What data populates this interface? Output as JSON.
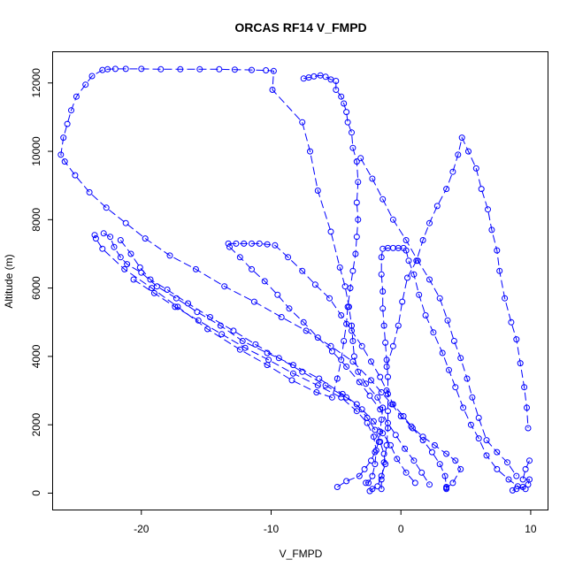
{
  "chart_data": {
    "type": "scatter",
    "title": "ORCAS RF14 V_FMPD",
    "xlabel": "V_FMPD",
    "ylabel": "Altitude (m)",
    "xlim": [
      -26.8,
      11.3
    ],
    "ylim": [
      -480,
      12900
    ],
    "xticks": [
      -20,
      -10,
      0,
      10
    ],
    "yticks": [
      0,
      2000,
      4000,
      6000,
      8000,
      10000,
      12000
    ],
    "grid": false,
    "legend": "none",
    "color": "#0000ff",
    "series": [
      {
        "points": [
          [
            -4.9,
            180
          ],
          [
            -4.2,
            350
          ],
          [
            -3.2,
            500
          ],
          [
            -2.8,
            700
          ],
          [
            -2.3,
            950
          ],
          [
            -2.0,
            1200
          ],
          [
            -1.7,
            1500
          ],
          [
            -1.6,
            1800
          ],
          [
            -1.5,
            2150
          ],
          [
            -1.4,
            2500
          ],
          [
            -1.8,
            2800
          ],
          [
            -2.7,
            3200
          ],
          [
            -3.3,
            3550
          ],
          [
            -3.6,
            4000
          ],
          [
            -3.7,
            4450
          ],
          [
            -3.8,
            4900
          ],
          [
            -4.0,
            5450
          ],
          [
            -4.3,
            6050
          ],
          [
            -4.7,
            6600
          ],
          [
            -5.4,
            7650
          ],
          [
            -6.4,
            8850
          ],
          [
            -7.0,
            10000
          ],
          [
            -7.6,
            10850
          ],
          [
            -9.9,
            11800
          ],
          [
            -9.8,
            12350
          ],
          [
            -10.4,
            12370
          ],
          [
            -11.5,
            12380
          ],
          [
            -12.8,
            12390
          ],
          [
            -14.0,
            12400
          ],
          [
            -15.5,
            12400
          ],
          [
            -17.0,
            12400
          ],
          [
            -18.5,
            12400
          ],
          [
            -20.0,
            12410
          ],
          [
            -21.2,
            12410
          ],
          [
            -22.0,
            12410
          ],
          [
            -22.6,
            12400
          ],
          [
            -23.0,
            12380
          ],
          [
            -23.8,
            12200
          ],
          [
            -24.3,
            11950
          ],
          [
            -25.0,
            11600
          ],
          [
            -25.4,
            11200
          ],
          [
            -25.7,
            10800
          ],
          [
            -26.0,
            10400
          ],
          [
            -26.2,
            9900
          ],
          [
            -25.9,
            9700
          ],
          [
            -25.1,
            9300
          ],
          [
            -24.0,
            8800
          ],
          [
            -22.7,
            8350
          ],
          [
            -21.2,
            7900
          ],
          [
            -19.7,
            7450
          ],
          [
            -17.8,
            6950
          ],
          [
            -15.8,
            6550
          ],
          [
            -13.6,
            6050
          ],
          [
            -11.3,
            5600
          ],
          [
            -9.2,
            5150
          ],
          [
            -7.3,
            4750
          ],
          [
            -5.4,
            4300
          ],
          [
            -3.7,
            3850
          ],
          [
            -2.3,
            3300
          ],
          [
            -1.5,
            2950
          ],
          [
            -0.7,
            2600
          ],
          [
            0.0,
            2250
          ],
          [
            0.8,
            1950
          ],
          [
            1.7,
            1650
          ],
          [
            2.6,
            1400
          ],
          [
            3.5,
            1150
          ],
          [
            4.2,
            950
          ],
          [
            4.6,
            700
          ],
          [
            4.0,
            300
          ],
          [
            3.5,
            150
          ]
        ]
      },
      {
        "points": [
          [
            -7.5,
            12130
          ],
          [
            -7.1,
            12160
          ],
          [
            -6.7,
            12190
          ],
          [
            -6.2,
            12220
          ],
          [
            -5.8,
            12180
          ],
          [
            -5.4,
            12100
          ],
          [
            -5.0,
            12060
          ],
          [
            -5.0,
            11800
          ],
          [
            -4.6,
            11600
          ],
          [
            -4.4,
            11400
          ],
          [
            -4.2,
            11150
          ],
          [
            -4.1,
            10850
          ],
          [
            -3.8,
            10550
          ],
          [
            -3.7,
            10100
          ],
          [
            -3.4,
            9700
          ],
          [
            -3.3,
            9100
          ],
          [
            -3.4,
            8500
          ],
          [
            -3.3,
            8000
          ],
          [
            -3.4,
            7500
          ],
          [
            -3.5,
            7000
          ],
          [
            -3.7,
            6500
          ],
          [
            -3.9,
            6000
          ],
          [
            -4.1,
            5450
          ],
          [
            -4.2,
            4950
          ],
          [
            -4.4,
            4450
          ],
          [
            -4.6,
            3900
          ],
          [
            -4.9,
            3350
          ],
          [
            -5.3,
            2800
          ],
          [
            -6.5,
            2950
          ],
          [
            -8.4,
            3300
          ],
          [
            -10.3,
            3750
          ],
          [
            -12.4,
            4200
          ],
          [
            -14.9,
            4800
          ],
          [
            -17.2,
            5450
          ],
          [
            -19.2,
            6000
          ],
          [
            -21.3,
            6550
          ],
          [
            -23.0,
            7150
          ],
          [
            -23.5,
            7450
          ],
          [
            -23.6,
            7550
          ]
        ]
      },
      {
        "points": [
          [
            -22.9,
            7600
          ],
          [
            -22.4,
            7500
          ],
          [
            -22.1,
            7200
          ],
          [
            -21.6,
            6900
          ],
          [
            -21.1,
            6700
          ],
          [
            -20.0,
            6450
          ],
          [
            -18.8,
            6050
          ],
          [
            -17.3,
            5700
          ],
          [
            -15.7,
            5300
          ],
          [
            -13.9,
            4900
          ],
          [
            -12.2,
            4450
          ],
          [
            -10.3,
            4100
          ],
          [
            -8.3,
            3750
          ],
          [
            -6.3,
            3350
          ],
          [
            -4.5,
            2900
          ],
          [
            -3.4,
            2600
          ],
          [
            -2.6,
            2200
          ],
          [
            -2.0,
            1850
          ],
          [
            -1.6,
            1500
          ],
          [
            -1.3,
            1150
          ],
          [
            -1.2,
            850
          ],
          [
            -1.5,
            500
          ],
          [
            -1.8,
            200
          ],
          [
            -2.2,
            120
          ],
          [
            -2.4,
            60
          ]
        ]
      },
      {
        "points": [
          [
            -21.6,
            7400
          ],
          [
            -20.8,
            7000
          ],
          [
            -20.1,
            6600
          ],
          [
            -19.3,
            6250
          ],
          [
            -18.0,
            5950
          ],
          [
            -16.4,
            5550
          ],
          [
            -14.7,
            5150
          ],
          [
            -12.9,
            4750
          ],
          [
            -11.2,
            4350
          ],
          [
            -9.4,
            3950
          ],
          [
            -7.6,
            3550
          ],
          [
            -5.8,
            3150
          ],
          [
            -4.2,
            2800
          ],
          [
            -3.0,
            2450
          ],
          [
            -2.1,
            2100
          ],
          [
            -1.4,
            1750
          ],
          [
            -0.8,
            1400
          ],
          [
            -0.3,
            1000
          ],
          [
            0.4,
            600
          ],
          [
            1.1,
            300
          ]
        ]
      },
      {
        "points": [
          [
            -20.6,
            6250
          ],
          [
            -19.0,
            5850
          ],
          [
            -17.4,
            5450
          ],
          [
            -15.6,
            5050
          ],
          [
            -13.8,
            4650
          ],
          [
            -12.0,
            4250
          ],
          [
            -10.2,
            3900
          ],
          [
            -8.3,
            3500
          ],
          [
            -6.4,
            3150
          ],
          [
            -4.6,
            2800
          ],
          [
            -3.4,
            2400
          ],
          [
            -2.6,
            2050
          ],
          [
            -2.1,
            1650
          ],
          [
            -1.9,
            1250
          ],
          [
            -2.0,
            850
          ],
          [
            -2.2,
            500
          ],
          [
            -2.5,
            300
          ],
          [
            -2.7,
            300
          ]
        ]
      },
      {
        "points": [
          [
            -13.3,
            7300
          ],
          [
            -12.7,
            7300
          ],
          [
            -12.1,
            7300
          ],
          [
            -11.5,
            7300
          ],
          [
            -10.9,
            7300
          ],
          [
            -10.3,
            7280
          ],
          [
            -9.7,
            7250
          ],
          [
            -8.7,
            6900
          ],
          [
            -7.6,
            6500
          ],
          [
            -6.6,
            6100
          ],
          [
            -5.5,
            5700
          ],
          [
            -4.6,
            5200
          ],
          [
            -3.8,
            4750
          ],
          [
            -3.0,
            4300
          ],
          [
            -2.3,
            3850
          ],
          [
            -1.6,
            3400
          ],
          [
            -1.1,
            3000
          ],
          [
            -0.6,
            2600
          ],
          [
            0.2,
            2250
          ],
          [
            0.9,
            1900
          ],
          [
            1.7,
            1550
          ],
          [
            2.4,
            1200
          ],
          [
            3.0,
            850
          ],
          [
            3.4,
            500
          ],
          [
            3.5,
            180
          ],
          [
            3.5,
            120
          ]
        ]
      },
      {
        "points": [
          [
            -13.2,
            7200
          ],
          [
            -12.4,
            6900
          ],
          [
            -11.5,
            6550
          ],
          [
            -10.5,
            6200
          ],
          [
            -9.5,
            5800
          ],
          [
            -8.6,
            5400
          ],
          [
            -7.5,
            5000
          ],
          [
            -6.4,
            4550
          ],
          [
            -5.3,
            4150
          ],
          [
            -4.2,
            3700
          ],
          [
            -3.2,
            3250
          ],
          [
            -2.4,
            2850
          ],
          [
            -1.6,
            2450
          ],
          [
            -1.0,
            2050
          ],
          [
            -0.4,
            1700
          ],
          [
            0.3,
            1300
          ],
          [
            1.0,
            950
          ],
          [
            1.6,
            600
          ],
          [
            2.2,
            250
          ]
        ]
      },
      {
        "points": [
          [
            -1.5,
            120
          ],
          [
            -1.5,
            400
          ],
          [
            -1.3,
            900
          ],
          [
            -1.1,
            1400
          ],
          [
            -1.0,
            1900
          ],
          [
            -1.0,
            2400
          ],
          [
            -1.0,
            2900
          ],
          [
            -1.0,
            3400
          ],
          [
            -1.1,
            3900
          ],
          [
            -1.2,
            4400
          ],
          [
            -1.3,
            4900
          ],
          [
            -1.4,
            5400
          ],
          [
            -1.4,
            5900
          ],
          [
            -1.5,
            6400
          ],
          [
            -1.5,
            6900
          ],
          [
            -1.4,
            7150
          ],
          [
            -1.0,
            7170
          ],
          [
            -0.6,
            7170
          ],
          [
            -0.2,
            7170
          ],
          [
            0.2,
            7170
          ],
          [
            0.4,
            7100
          ],
          [
            0.6,
            6800
          ],
          [
            1.0,
            6400
          ],
          [
            1.4,
            5800
          ],
          [
            1.9,
            5200
          ],
          [
            2.5,
            4700
          ],
          [
            3.2,
            4100
          ],
          [
            3.7,
            3600
          ],
          [
            4.2,
            3100
          ],
          [
            4.8,
            2500
          ],
          [
            5.4,
            2000
          ],
          [
            6.0,
            1600
          ],
          [
            6.6,
            1100
          ],
          [
            7.4,
            700
          ],
          [
            8.3,
            400
          ],
          [
            9.0,
            200
          ],
          [
            9.6,
            120
          ]
        ]
      },
      {
        "points": [
          [
            9.9,
            950
          ],
          [
            9.6,
            700
          ],
          [
            9.4,
            400
          ],
          [
            9.9,
            400
          ],
          [
            9.8,
            250
          ],
          [
            9.4,
            180
          ],
          [
            8.9,
            120
          ],
          [
            8.6,
            80
          ]
        ]
      },
      {
        "points": [
          [
            -1.1,
            3700
          ],
          [
            -0.6,
            4300
          ],
          [
            -0.2,
            4900
          ],
          [
            0.1,
            5600
          ],
          [
            0.5,
            6300
          ],
          [
            1.2,
            6800
          ],
          [
            1.7,
            7400
          ],
          [
            2.2,
            7900
          ],
          [
            2.8,
            8400
          ],
          [
            3.5,
            8900
          ],
          [
            4.0,
            9400
          ],
          [
            4.4,
            9900
          ],
          [
            4.7,
            10400
          ],
          [
            5.2,
            10000
          ],
          [
            5.8,
            9500
          ],
          [
            6.2,
            8900
          ],
          [
            6.7,
            8300
          ],
          [
            7.0,
            7700
          ],
          [
            7.4,
            7100
          ],
          [
            7.6,
            6500
          ],
          [
            8.0,
            5700
          ],
          [
            8.5,
            5000
          ],
          [
            8.9,
            4500
          ],
          [
            9.2,
            3800
          ],
          [
            9.5,
            3100
          ],
          [
            9.7,
            2500
          ],
          [
            9.8,
            1900
          ]
        ]
      },
      {
        "points": [
          [
            -3.1,
            9800
          ],
          [
            -2.2,
            9200
          ],
          [
            -1.4,
            8600
          ],
          [
            -0.6,
            8000
          ],
          [
            0.4,
            7400
          ],
          [
            1.3,
            6800
          ],
          [
            2.2,
            6250
          ],
          [
            3.0,
            5700
          ],
          [
            3.6,
            5050
          ],
          [
            4.1,
            4450
          ],
          [
            4.6,
            3950
          ],
          [
            5.1,
            3350
          ],
          [
            5.5,
            2800
          ],
          [
            6.0,
            2200
          ],
          [
            6.6,
            1550
          ],
          [
            7.4,
            1200
          ],
          [
            8.2,
            900
          ],
          [
            8.9,
            500
          ]
        ]
      }
    ]
  }
}
